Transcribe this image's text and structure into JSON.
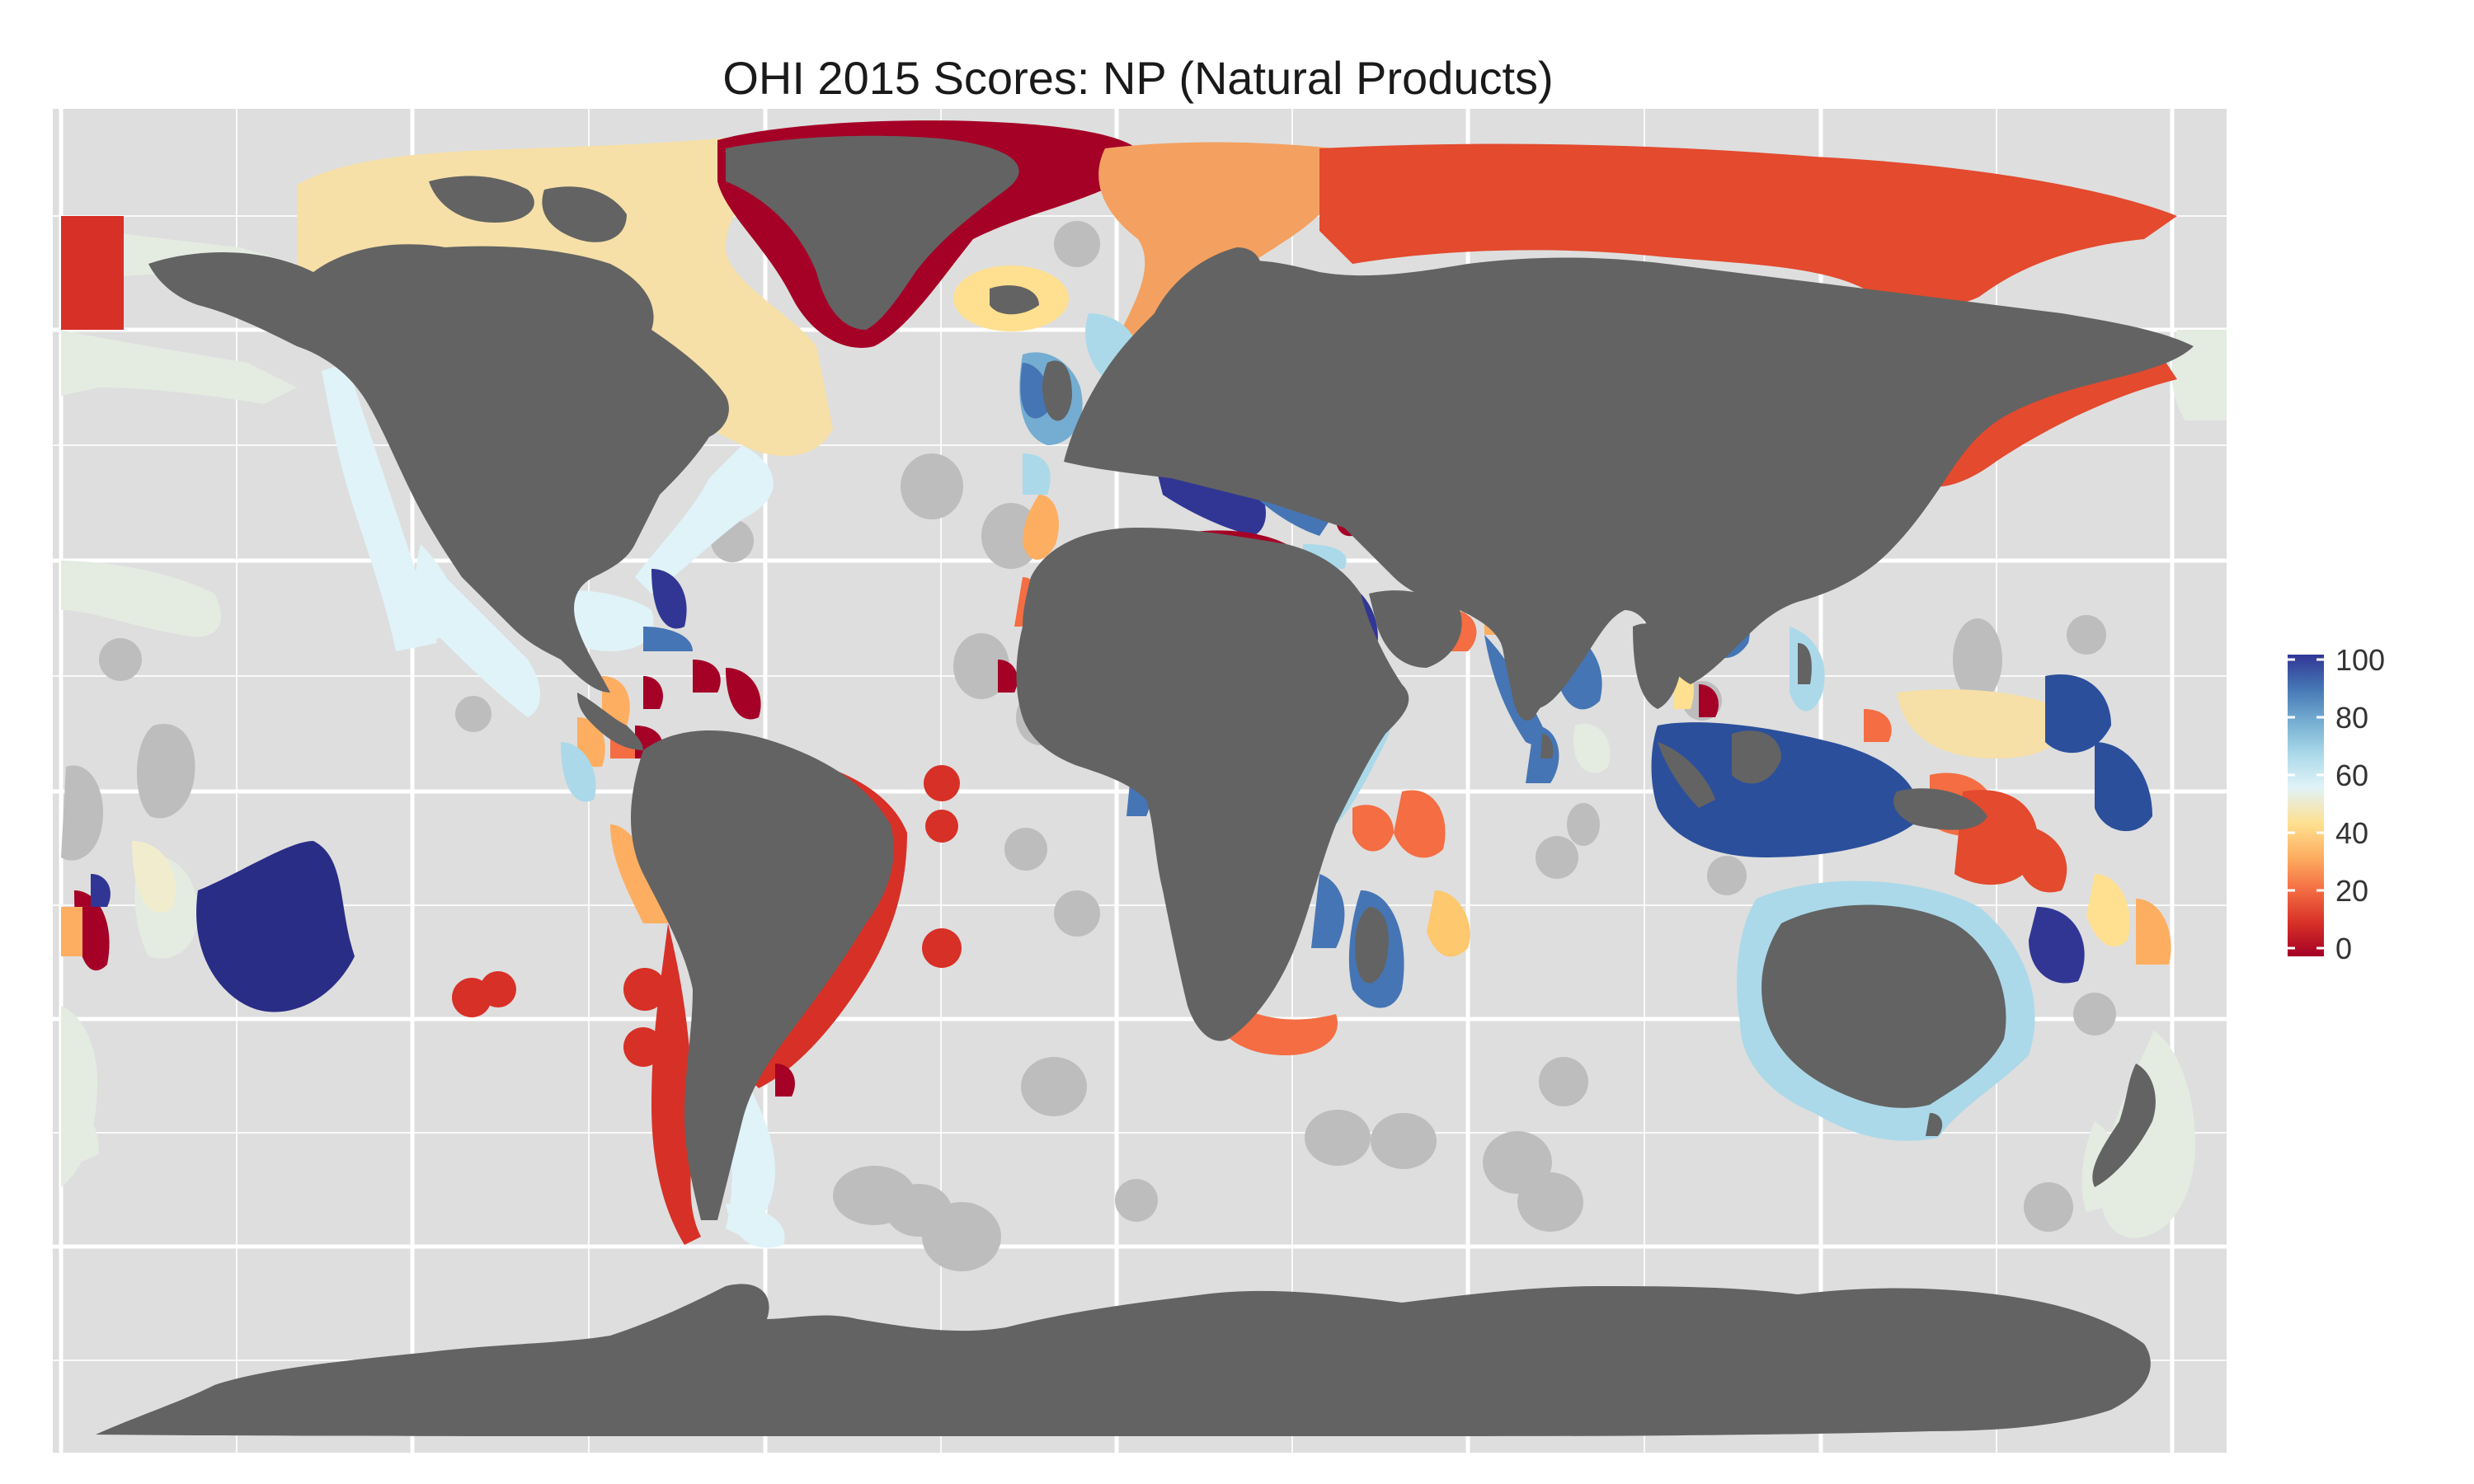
{
  "title": "OHI 2015 Scores: NP (Natural Products)",
  "legend": {
    "ticks": [
      "100",
      "80",
      "60",
      "40",
      "20",
      "0"
    ],
    "tick_values": [
      100,
      80,
      60,
      40,
      20,
      0
    ],
    "range": [
      0,
      100
    ]
  },
  "colors": {
    "panel_background": "#dedede",
    "gridline": "#ffffff",
    "land": "#636363",
    "no_data": "#bdbdbd",
    "missing_score": "#e4ece2",
    "score_ramp": [
      "#a50026",
      "#d73027",
      "#f46d43",
      "#fdae61",
      "#fee090",
      "#e0f3f8",
      "#abd9e9",
      "#74add1",
      "#4575b4",
      "#313695"
    ]
  }
}
